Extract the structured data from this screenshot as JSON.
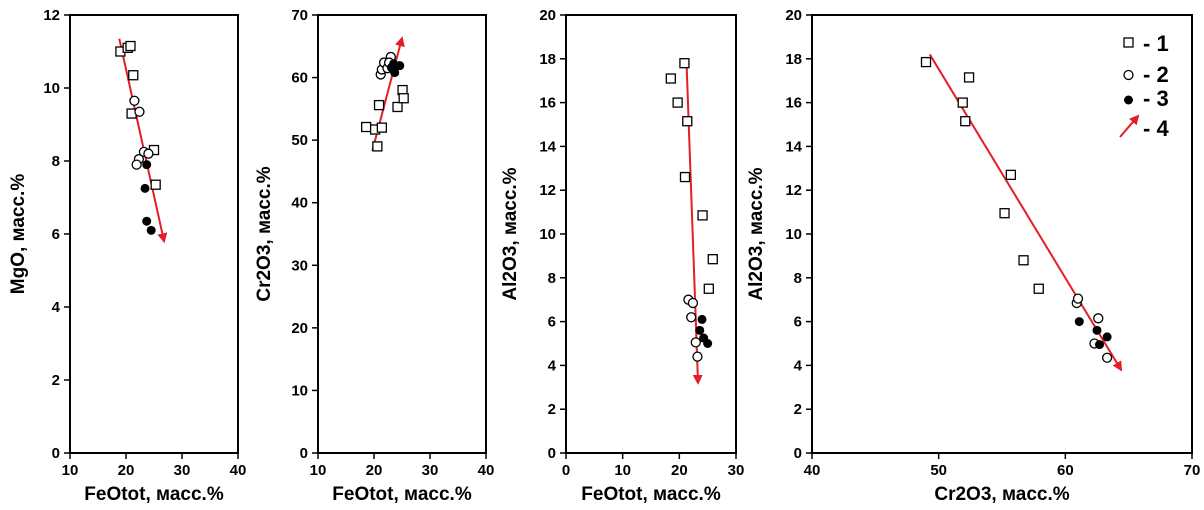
{
  "colors": {
    "trend": "#e31e24",
    "axis": "#000000",
    "open_fill": "#ffffff"
  },
  "chart_data": [
    {
      "type": "scatter",
      "xlabel": "FeOtot, масс.%",
      "ylabel": "MgO, масс.%",
      "xlim": [
        10,
        40
      ],
      "ylim": [
        0,
        12
      ],
      "xticks": [
        "10",
        "20",
        "30",
        "40"
      ],
      "yticks": [
        "0",
        "2",
        "4",
        "6",
        "8",
        "10",
        "12"
      ],
      "series": [
        {
          "marker": "square",
          "points": [
            [
              19.0,
              11.0
            ],
            [
              20.3,
              11.1
            ],
            [
              20.8,
              11.15
            ],
            [
              21.3,
              10.35
            ],
            [
              21.0,
              9.3
            ],
            [
              25.0,
              8.3
            ],
            [
              25.3,
              7.35
            ]
          ]
        },
        {
          "marker": "circle-open",
          "points": [
            [
              21.5,
              9.65
            ],
            [
              22.4,
              9.35
            ],
            [
              23.2,
              8.25
            ],
            [
              22.3,
              8.05
            ],
            [
              21.9,
              7.9
            ],
            [
              24.0,
              8.2
            ]
          ]
        },
        {
          "marker": "circle-filled",
          "points": [
            [
              23.7,
              7.9
            ],
            [
              23.4,
              7.25
            ],
            [
              23.7,
              6.35
            ],
            [
              24.5,
              6.1
            ]
          ]
        }
      ],
      "trend": {
        "from": [
          18.8,
          11.35
        ],
        "to": [
          26.8,
          5.8
        ]
      }
    },
    {
      "type": "scatter",
      "xlabel": "FeOtot, масс.%",
      "ylabel": "Cr2O3, масс.%",
      "xlim": [
        10,
        40
      ],
      "ylim": [
        0,
        70
      ],
      "xticks": [
        "10",
        "20",
        "30",
        "40"
      ],
      "yticks": [
        "0",
        "10",
        "20",
        "30",
        "40",
        "50",
        "60",
        "70"
      ],
      "series": [
        {
          "marker": "square",
          "points": [
            [
              18.6,
              52.1
            ],
            [
              20.2,
              51.7
            ],
            [
              21.4,
              52.0
            ],
            [
              20.6,
              49.0
            ],
            [
              20.9,
              55.6
            ],
            [
              24.2,
              55.3
            ],
            [
              25.1,
              58.0
            ],
            [
              25.3,
              56.7
            ]
          ]
        },
        {
          "marker": "circle-open",
          "points": [
            [
              21.2,
              60.5
            ],
            [
              21.4,
              61.3
            ],
            [
              21.8,
              62.4
            ],
            [
              22.4,
              61.5
            ],
            [
              23.0,
              63.3
            ],
            [
              22.7,
              62.4
            ]
          ]
        },
        {
          "marker": "circle-filled",
          "points": [
            [
              23.7,
              60.8
            ],
            [
              23.9,
              61.8
            ],
            [
              24.6,
              61.9
            ],
            [
              23.5,
              62.2
            ],
            [
              23.1,
              61.6
            ]
          ]
        }
      ],
      "trend": {
        "from": [
          19.7,
          48.3
        ],
        "to": [
          25.0,
          66.3
        ]
      }
    },
    {
      "type": "scatter",
      "xlabel": "FeOtot, масс.%",
      "ylabel": "Al2O3, масс.%",
      "xlim": [
        0,
        30
      ],
      "ylim": [
        0,
        20
      ],
      "xticks": [
        "0",
        "10",
        "20",
        "30"
      ],
      "yticks": [
        "0",
        "2",
        "4",
        "6",
        "8",
        "10",
        "12",
        "14",
        "16",
        "18",
        "20"
      ],
      "series": [
        {
          "marker": "square",
          "points": [
            [
              18.5,
              17.1
            ],
            [
              19.7,
              16.0
            ],
            [
              20.9,
              17.8
            ],
            [
              21.4,
              15.15
            ],
            [
              21.0,
              12.6
            ],
            [
              24.1,
              10.85
            ],
            [
              25.9,
              8.85
            ],
            [
              25.2,
              7.5
            ]
          ]
        },
        {
          "marker": "circle-open",
          "points": [
            [
              21.6,
              7.0
            ],
            [
              22.4,
              6.85
            ],
            [
              22.1,
              6.2
            ],
            [
              22.9,
              5.05
            ],
            [
              23.2,
              4.4
            ]
          ]
        },
        {
          "marker": "circle-filled",
          "points": [
            [
              24.0,
              6.1
            ],
            [
              23.6,
              5.6
            ],
            [
              24.3,
              5.25
            ],
            [
              25.0,
              5.0
            ]
          ]
        }
      ],
      "trend": {
        "from": [
          21.3,
          17.6
        ],
        "to": [
          23.3,
          3.2
        ]
      }
    },
    {
      "type": "scatter",
      "xlabel": "Cr2O3, масс.%",
      "ylabel": "Al2O3, масс.%",
      "xlim": [
        40,
        70
      ],
      "ylim": [
        0,
        20
      ],
      "xticks": [
        "40",
        "50",
        "60",
        "70"
      ],
      "yticks": [
        "0",
        "2",
        "4",
        "6",
        "8",
        "10",
        "12",
        "14",
        "16",
        "18",
        "20"
      ],
      "series": [
        {
          "marker": "square",
          "points": [
            [
              49.0,
              17.85
            ],
            [
              52.4,
              17.15
            ],
            [
              51.9,
              16.0
            ],
            [
              52.1,
              15.15
            ],
            [
              55.7,
              12.7
            ],
            [
              55.2,
              10.95
            ],
            [
              56.7,
              8.8
            ],
            [
              57.9,
              7.5
            ]
          ]
        },
        {
          "marker": "circle-open",
          "points": [
            [
              60.9,
              6.85
            ],
            [
              61.0,
              7.05
            ],
            [
              62.6,
              6.15
            ],
            [
              62.3,
              5.0
            ],
            [
              63.3,
              4.35
            ]
          ]
        },
        {
          "marker": "circle-filled",
          "points": [
            [
              61.1,
              6.0
            ],
            [
              62.5,
              5.6
            ],
            [
              63.3,
              5.3
            ],
            [
              62.7,
              4.95
            ]
          ]
        }
      ],
      "trend": {
        "from": [
          49.3,
          18.2
        ],
        "to": [
          64.4,
          3.8
        ]
      }
    }
  ],
  "legend": {
    "items": [
      {
        "symbol": "square",
        "label": "- 1"
      },
      {
        "symbol": "circle-open",
        "label": "- 2"
      },
      {
        "symbol": "circle-filled",
        "label": "- 3"
      },
      {
        "symbol": "arrow",
        "label": "- 4"
      }
    ]
  }
}
